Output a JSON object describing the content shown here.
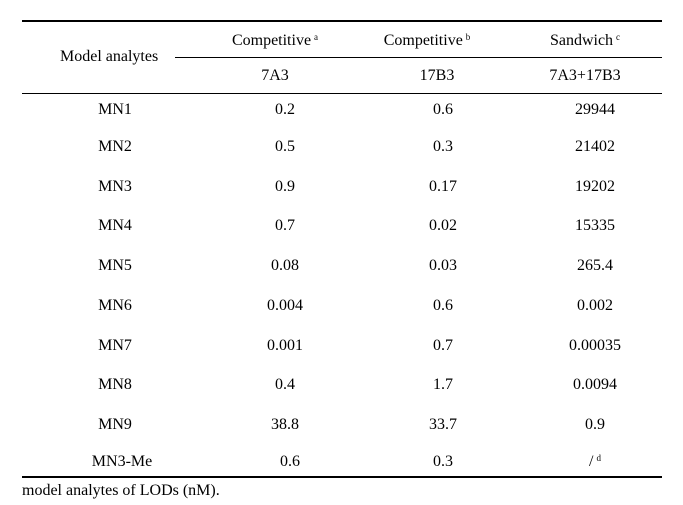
{
  "table": {
    "row_header": "Model analytes",
    "groups": [
      {
        "label": "Competitive",
        "sup": "a",
        "antibody": "7A3"
      },
      {
        "label": "Competitive",
        "sup": "b",
        "antibody": "17B3"
      },
      {
        "label": "Sandwich",
        "sup": "c",
        "antibody": "7A3+17B3"
      }
    ],
    "rows": [
      {
        "analyte": "MN1",
        "v1": "0.2",
        "v2": "0.6",
        "v3": "29944",
        "v3_sup": ""
      },
      {
        "analyte": "MN2",
        "v1": "0.5",
        "v2": "0.3",
        "v3": "21402",
        "v3_sup": ""
      },
      {
        "analyte": "MN3",
        "v1": "0.9",
        "v2": "0.17",
        "v3": "19202",
        "v3_sup": ""
      },
      {
        "analyte": "MN4",
        "v1": "0.7",
        "v2": "0.02",
        "v3": "15335",
        "v3_sup": ""
      },
      {
        "analyte": "MN5",
        "v1": "0.08",
        "v2": "0.03",
        "v3": "265.4",
        "v3_sup": ""
      },
      {
        "analyte": "MN6",
        "v1": "0.004",
        "v2": "0.6",
        "v3": "0.002",
        "v3_sup": ""
      },
      {
        "analyte": "MN7",
        "v1": "0.001",
        "v2": "0.7",
        "v3": "0.00035",
        "v3_sup": ""
      },
      {
        "analyte": "MN8",
        "v1": "0.4",
        "v2": "1.7",
        "v3": "0.0094",
        "v3_sup": ""
      },
      {
        "analyte": "MN9",
        "v1": "38.8",
        "v2": "33.7",
        "v3": "0.9",
        "v3_sup": ""
      },
      {
        "analyte": "MN3-Me",
        "v1": "0.6",
        "v2": "0.3",
        "v3": "/",
        "v3_sup": "d"
      }
    ]
  },
  "caption": "model analytes of LODs (nM)."
}
